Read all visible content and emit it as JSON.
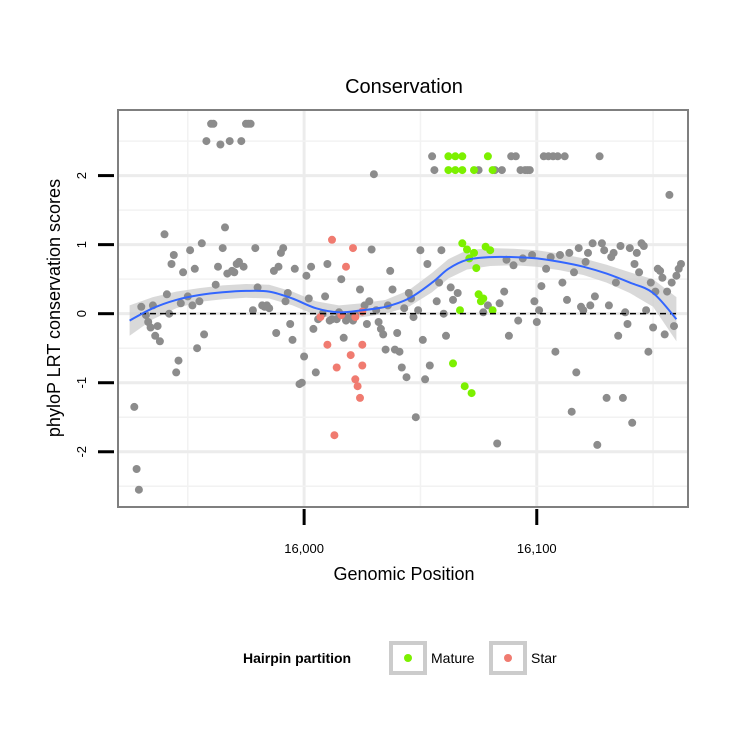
{
  "chart_data": {
    "type": "scatter",
    "title": "Conservation",
    "xlabel": "Genomic Position",
    "ylabel": "phyloP LRT conservation scores",
    "xlim": [
      15920,
      16165
    ],
    "ylim": [
      -2.8,
      2.95
    ],
    "x_ticks": [
      16000,
      16100
    ],
    "x_tick_labels": [
      "16,000",
      "16,100"
    ],
    "y_ticks": [
      -2,
      -1,
      0,
      1,
      2
    ],
    "y_tick_labels": [
      "-2",
      "-1",
      "0",
      "1",
      "2"
    ],
    "grid": true,
    "reference_line": {
      "y": 0,
      "style": "dashed"
    },
    "legend": {
      "title": "Hairpin partition",
      "placement": "bottom",
      "entries": [
        {
          "label": "Mature",
          "color": "#7cf000"
        },
        {
          "label": "Star",
          "color": "#f07b70"
        }
      ]
    },
    "colors": {
      "other": "#8c8c8c",
      "smooth": "#3366ff",
      "band": "#cccccc"
    },
    "smooth": [
      [
        15925,
        -0.1
      ],
      [
        15935,
        0.08
      ],
      [
        15945,
        0.2
      ],
      [
        15955,
        0.27
      ],
      [
        15965,
        0.31
      ],
      [
        15975,
        0.33
      ],
      [
        15985,
        0.32
      ],
      [
        15995,
        0.22
      ],
      [
        16005,
        0.08
      ],
      [
        16015,
        0.02
      ],
      [
        16025,
        0.05
      ],
      [
        16035,
        0.1
      ],
      [
        16045,
        0.22
      ],
      [
        16055,
        0.45
      ],
      [
        16062,
        0.65
      ],
      [
        16070,
        0.78
      ],
      [
        16080,
        0.82
      ],
      [
        16090,
        0.82
      ],
      [
        16100,
        0.8
      ],
      [
        16110,
        0.75
      ],
      [
        16120,
        0.68
      ],
      [
        16130,
        0.58
      ],
      [
        16140,
        0.45
      ],
      [
        16150,
        0.3
      ],
      [
        16160,
        -0.08
      ]
    ],
    "band_halfwidth": [
      0.22,
      0.16,
      0.12,
      0.1,
      0.1,
      0.1,
      0.1,
      0.1,
      0.1,
      0.1,
      0.1,
      0.1,
      0.12,
      0.14,
      0.14,
      0.14,
      0.13,
      0.12,
      0.12,
      0.12,
      0.12,
      0.13,
      0.15,
      0.2,
      0.32
    ],
    "series": [
      {
        "name": "Mature",
        "points": [
          [
            16062,
            2.28
          ],
          [
            16065,
            2.28
          ],
          [
            16068,
            2.28
          ],
          [
            16079,
            2.28
          ],
          [
            16062,
            2.08
          ],
          [
            16065,
            2.08
          ],
          [
            16068,
            2.08
          ],
          [
            16073,
            2.08
          ],
          [
            16081,
            2.08
          ],
          [
            16068,
            1.02
          ],
          [
            16070,
            0.93
          ],
          [
            16073,
            0.88
          ],
          [
            16078,
            0.97
          ],
          [
            16080,
            0.92
          ],
          [
            16071,
            0.8
          ],
          [
            16074,
            0.66
          ],
          [
            16075,
            0.28
          ],
          [
            16077,
            0.22
          ],
          [
            16076,
            0.18
          ],
          [
            16067,
            0.05
          ],
          [
            16081,
            0.05
          ],
          [
            16064,
            -0.72
          ],
          [
            16069,
            -1.05
          ],
          [
            16072,
            -1.15
          ]
        ]
      },
      {
        "name": "Star",
        "points": [
          [
            16012,
            1.07
          ],
          [
            16021,
            0.95
          ],
          [
            16018,
            0.68
          ],
          [
            16007,
            -0.05
          ],
          [
            16016,
            -0.02
          ],
          [
            16022,
            -0.05
          ],
          [
            16025,
            0.03
          ],
          [
            16010,
            -0.45
          ],
          [
            16025,
            -0.45
          ],
          [
            16014,
            -0.78
          ],
          [
            16020,
            -0.6
          ],
          [
            16022,
            -0.95
          ],
          [
            16025,
            -0.75
          ],
          [
            16023,
            -1.05
          ],
          [
            16024,
            -1.22
          ],
          [
            16013,
            -1.76
          ]
        ]
      },
      {
        "name": "",
        "points": [
          [
            15927,
            -1.35
          ],
          [
            15928,
            -2.25
          ],
          [
            15929,
            -2.55
          ],
          [
            15930,
            0.1
          ],
          [
            15932,
            -0.02
          ],
          [
            15933,
            -0.12
          ],
          [
            15934,
            -0.2
          ],
          [
            15935,
            0.12
          ],
          [
            15936,
            -0.32
          ],
          [
            15937,
            -0.18
          ],
          [
            15938,
            -0.4
          ],
          [
            15940,
            1.15
          ],
          [
            15941,
            0.28
          ],
          [
            15942,
            0.0
          ],
          [
            15943,
            0.72
          ],
          [
            15944,
            0.85
          ],
          [
            15945,
            -0.85
          ],
          [
            15946,
            -0.68
          ],
          [
            15947,
            0.15
          ],
          [
            15948,
            0.6
          ],
          [
            15950,
            0.25
          ],
          [
            15951,
            0.92
          ],
          [
            15952,
            0.12
          ],
          [
            15953,
            0.65
          ],
          [
            15954,
            -0.5
          ],
          [
            15955,
            0.18
          ],
          [
            15956,
            1.02
          ],
          [
            15957,
            -0.3
          ],
          [
            15958,
            2.5
          ],
          [
            15960,
            2.75
          ],
          [
            15961,
            2.75
          ],
          [
            15962,
            0.42
          ],
          [
            15963,
            0.68
          ],
          [
            15964,
            2.45
          ],
          [
            15965,
            0.95
          ],
          [
            15966,
            1.25
          ],
          [
            15967,
            0.58
          ],
          [
            15968,
            2.5
          ],
          [
            15969,
            0.62
          ],
          [
            15970,
            0.6
          ],
          [
            15971,
            0.72
          ],
          [
            15972,
            0.75
          ],
          [
            15973,
            2.5
          ],
          [
            15974,
            0.68
          ],
          [
            15975,
            2.75
          ],
          [
            15976,
            2.75
          ],
          [
            15977,
            2.75
          ],
          [
            15978,
            0.05
          ],
          [
            15979,
            0.95
          ],
          [
            15980,
            0.38
          ],
          [
            15982,
            0.12
          ],
          [
            15983,
            0.1
          ],
          [
            15984,
            0.12
          ],
          [
            15985,
            0.08
          ],
          [
            15987,
            0.62
          ],
          [
            15988,
            -0.28
          ],
          [
            15989,
            0.68
          ],
          [
            15990,
            0.88
          ],
          [
            15991,
            0.95
          ],
          [
            15992,
            0.18
          ],
          [
            15993,
            0.3
          ],
          [
            15994,
            -0.15
          ],
          [
            15995,
            -0.38
          ],
          [
            15996,
            0.65
          ],
          [
            15998,
            -1.02
          ],
          [
            15999,
            -1.0
          ],
          [
            16000,
            -0.62
          ],
          [
            16001,
            0.55
          ],
          [
            16002,
            0.22
          ],
          [
            16003,
            0.68
          ],
          [
            16004,
            -0.22
          ],
          [
            16005,
            -0.85
          ],
          [
            16006,
            -0.08
          ],
          [
            16008,
            0.0
          ],
          [
            16009,
            0.25
          ],
          [
            16010,
            0.72
          ],
          [
            16011,
            -0.1
          ],
          [
            16012,
            -0.08
          ],
          [
            16014,
            -0.08
          ],
          [
            16015,
            0.02
          ],
          [
            16016,
            0.5
          ],
          [
            16017,
            -0.35
          ],
          [
            16018,
            -0.1
          ],
          [
            16019,
            -0.05
          ],
          [
            16020,
            -0.02
          ],
          [
            16021,
            -0.1
          ],
          [
            16022,
            -0.02
          ],
          [
            16024,
            0.35
          ],
          [
            16026,
            0.12
          ],
          [
            16027,
            -0.15
          ],
          [
            16028,
            0.18
          ],
          [
            16029,
            0.93
          ],
          [
            16030,
            2.02
          ],
          [
            16031,
            0.05
          ],
          [
            16032,
            -0.12
          ],
          [
            16033,
            -0.22
          ],
          [
            16034,
            -0.3
          ],
          [
            16035,
            -0.52
          ],
          [
            16036,
            0.12
          ],
          [
            16037,
            0.62
          ],
          [
            16038,
            0.35
          ],
          [
            16039,
            -0.52
          ],
          [
            16040,
            -0.28
          ],
          [
            16041,
            -0.55
          ],
          [
            16042,
            -0.78
          ],
          [
            16043,
            0.08
          ],
          [
            16044,
            -0.92
          ],
          [
            16045,
            0.3
          ],
          [
            16046,
            0.22
          ],
          [
            16047,
            -0.05
          ],
          [
            16048,
            -1.5
          ],
          [
            16049,
            0.05
          ],
          [
            16050,
            0.92
          ],
          [
            16051,
            -0.38
          ],
          [
            16052,
            -0.95
          ],
          [
            16053,
            0.72
          ],
          [
            16054,
            -0.75
          ],
          [
            16055,
            2.28
          ],
          [
            16056,
            2.08
          ],
          [
            16057,
            0.18
          ],
          [
            16058,
            0.45
          ],
          [
            16059,
            0.92
          ],
          [
            16060,
            0.0
          ],
          [
            16061,
            -0.32
          ],
          [
            16063,
            0.38
          ],
          [
            16064,
            0.2
          ],
          [
            16066,
            0.3
          ],
          [
            16075,
            2.08
          ],
          [
            16077,
            0.02
          ],
          [
            16079,
            0.12
          ],
          [
            16082,
            2.08
          ],
          [
            16083,
            -1.88
          ],
          [
            16084,
            0.15
          ],
          [
            16085,
            2.08
          ],
          [
            16086,
            0.32
          ],
          [
            16087,
            0.78
          ],
          [
            16088,
            -0.32
          ],
          [
            16089,
            2.28
          ],
          [
            16090,
            0.7
          ],
          [
            16091,
            2.28
          ],
          [
            16092,
            -0.1
          ],
          [
            16093,
            2.08
          ],
          [
            16094,
            0.8
          ],
          [
            16095,
            2.08
          ],
          [
            16096,
            2.08
          ],
          [
            16097,
            2.08
          ],
          [
            16098,
            0.85
          ],
          [
            16099,
            0.18
          ],
          [
            16100,
            -0.12
          ],
          [
            16101,
            0.05
          ],
          [
            16102,
            0.4
          ],
          [
            16103,
            2.28
          ],
          [
            16104,
            0.65
          ],
          [
            16105,
            2.28
          ],
          [
            16106,
            0.82
          ],
          [
            16107,
            2.28
          ],
          [
            16108,
            -0.55
          ],
          [
            16109,
            2.28
          ],
          [
            16110,
            0.85
          ],
          [
            16111,
            0.45
          ],
          [
            16112,
            2.28
          ],
          [
            16113,
            0.2
          ],
          [
            16114,
            0.88
          ],
          [
            16115,
            -1.42
          ],
          [
            16116,
            0.6
          ],
          [
            16117,
            -0.85
          ],
          [
            16118,
            0.95
          ],
          [
            16119,
            0.1
          ],
          [
            16120,
            0.05
          ],
          [
            16121,
            0.75
          ],
          [
            16122,
            0.88
          ],
          [
            16123,
            0.12
          ],
          [
            16124,
            1.02
          ],
          [
            16125,
            0.25
          ],
          [
            16126,
            -1.9
          ],
          [
            16127,
            2.28
          ],
          [
            16128,
            1.02
          ],
          [
            16129,
            0.92
          ],
          [
            16130,
            -1.22
          ],
          [
            16131,
            0.12
          ],
          [
            16132,
            0.82
          ],
          [
            16133,
            0.88
          ],
          [
            16134,
            0.45
          ],
          [
            16135,
            -0.32
          ],
          [
            16136,
            0.98
          ],
          [
            16137,
            -1.22
          ],
          [
            16138,
            0.02
          ],
          [
            16139,
            -0.15
          ],
          [
            16140,
            0.95
          ],
          [
            16141,
            -1.58
          ],
          [
            16142,
            0.72
          ],
          [
            16143,
            0.88
          ],
          [
            16144,
            0.6
          ],
          [
            16145,
            1.02
          ],
          [
            16146,
            0.98
          ],
          [
            16147,
            0.05
          ],
          [
            16148,
            -0.55
          ],
          [
            16149,
            0.45
          ],
          [
            16150,
            -0.2
          ],
          [
            16151,
            0.32
          ],
          [
            16152,
            0.65
          ],
          [
            16153,
            0.62
          ],
          [
            16154,
            0.52
          ],
          [
            16155,
            -0.3
          ],
          [
            16156,
            0.32
          ],
          [
            16157,
            1.72
          ],
          [
            16158,
            0.45
          ],
          [
            16159,
            -0.18
          ],
          [
            16160,
            0.55
          ],
          [
            16161,
            0.65
          ],
          [
            16162,
            0.72
          ]
        ]
      }
    ]
  }
}
